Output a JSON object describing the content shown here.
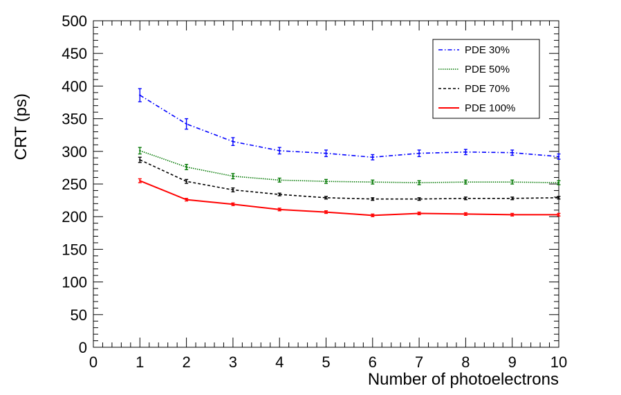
{
  "chart_data": {
    "type": "line",
    "xlabel": "Number of photoelectrons",
    "ylabel": "CRT (ps)",
    "xlim": [
      0,
      10
    ],
    "ylim": [
      0,
      500
    ],
    "x_ticks": [
      0,
      1,
      2,
      3,
      4,
      5,
      6,
      7,
      8,
      9,
      10
    ],
    "y_ticks": [
      0,
      50,
      100,
      150,
      200,
      250,
      300,
      350,
      400,
      450,
      500
    ],
    "grid": false,
    "legend_position": "top-right",
    "x": [
      1,
      2,
      3,
      4,
      5,
      6,
      7,
      8,
      9,
      10
    ],
    "series": [
      {
        "name": "PDE 30%",
        "color": "#0000ff",
        "style": "dash-dot",
        "values": [
          386,
          342,
          315,
          301,
          297,
          291,
          297,
          299,
          298,
          292
        ],
        "errors": [
          10,
          8,
          6,
          5,
          5,
          4,
          5,
          4,
          4,
          4
        ]
      },
      {
        "name": "PDE 50%",
        "color": "#007700",
        "style": "dotted",
        "values": [
          301,
          276,
          262,
          256,
          254,
          253,
          252,
          253,
          253,
          252
        ],
        "errors": [
          5,
          4,
          4,
          3,
          3,
          3,
          3,
          3,
          3,
          3
        ]
      },
      {
        "name": "PDE 70%",
        "color": "#000000",
        "style": "dashed",
        "values": [
          287,
          254,
          241,
          234,
          229,
          227,
          227,
          228,
          228,
          229
        ],
        "errors": [
          4,
          3,
          3,
          2,
          2,
          2,
          2,
          2,
          2,
          2
        ]
      },
      {
        "name": "PDE 100%",
        "color": "#ff0000",
        "style": "solid",
        "values": [
          255,
          226,
          219,
          211,
          207,
          202,
          205,
          204,
          203,
          203
        ],
        "errors": [
          3,
          2,
          2,
          2,
          2,
          2,
          2,
          2,
          2,
          2
        ]
      }
    ]
  }
}
